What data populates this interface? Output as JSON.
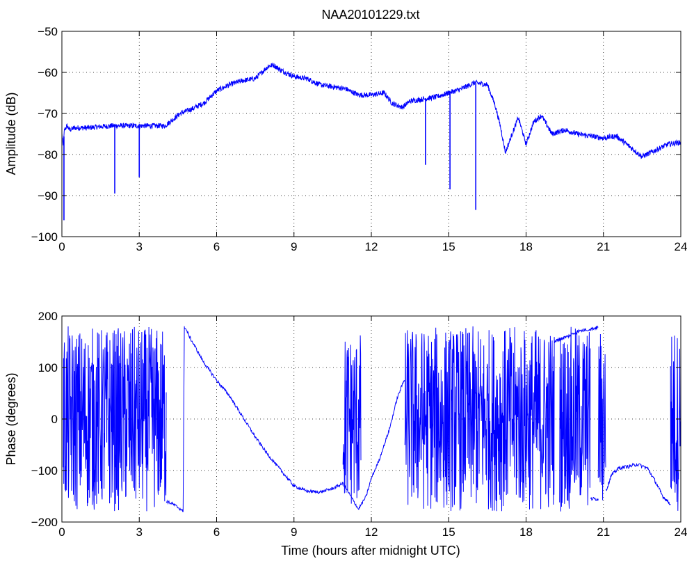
{
  "figure": {
    "title": "NAA20101229.txt",
    "line_color": "#0000ff",
    "background": "#ffffff",
    "grid_style": "dotted"
  },
  "chart_data": [
    {
      "type": "line",
      "title": "NAA20101229.txt",
      "xlabel": "",
      "ylabel": "Amplitude (dB)",
      "xlim": [
        0,
        24
      ],
      "ylim": [
        -100,
        -50
      ],
      "x_ticks": [
        0,
        3,
        6,
        9,
        12,
        15,
        18,
        21,
        24
      ],
      "y_ticks": [
        -50,
        -60,
        -70,
        -80,
        -90,
        -100
      ],
      "x_tick_labels": [
        "0",
        "3",
        "6",
        "9",
        "12",
        "15",
        "18",
        "21",
        "24"
      ],
      "y_tick_labels": [
        "−50",
        "−60",
        "−70",
        "−80",
        "−90",
        "−100"
      ],
      "grid": true,
      "series": [
        {
          "color": "#0000ff",
          "x": [
            0,
            0.05,
            0.1,
            0.2,
            0.3,
            0.5,
            1,
            1.5,
            2,
            2.5,
            3,
            3.5,
            4,
            4.3,
            4.6,
            5,
            5.5,
            6,
            6.5,
            7,
            7.5,
            8,
            8.2,
            8.5,
            9,
            9.5,
            10,
            10.5,
            11,
            11.5,
            12,
            12.5,
            12.8,
            13.2,
            13.5,
            14,
            14.5,
            15,
            15.5,
            16,
            16.5,
            16.8,
            17,
            17.2,
            17.4,
            17.7,
            18,
            18.3,
            18.6,
            19,
            19.5,
            20,
            20.5,
            21,
            21.5,
            22,
            22.5,
            23,
            23.5,
            24
          ],
          "y": [
            -75,
            -78,
            -74,
            -73,
            -74,
            -73.5,
            -73.5,
            -73.2,
            -73,
            -73,
            -73,
            -73,
            -73,
            -71.5,
            -70,
            -69,
            -67.5,
            -64.5,
            -63,
            -62,
            -61.5,
            -58.5,
            -58.2,
            -59.5,
            -61,
            -61.5,
            -63,
            -63.5,
            -64,
            -65.5,
            -65.5,
            -65,
            -67.5,
            -68.5,
            -67,
            -66.5,
            -66,
            -65,
            -64,
            -62.5,
            -63,
            -68,
            -73,
            -79.5,
            -76,
            -71,
            -77.5,
            -72,
            -70.5,
            -75,
            -74,
            -75,
            -75.5,
            -76,
            -75.5,
            -78,
            -80.5,
            -79,
            -77.5,
            -77
          ],
          "spikes": [
            {
              "x": 0.08,
              "min": -96
            },
            {
              "x": 2.05,
              "min": -89.5
            },
            {
              "x": 3.0,
              "min": -85.5
            },
            {
              "x": 14.1,
              "min": -82.5
            },
            {
              "x": 15.05,
              "min": -88.5
            },
            {
              "x": 16.05,
              "min": -93.5
            }
          ]
        }
      ]
    },
    {
      "type": "line",
      "title": "",
      "xlabel": "Time (hours after midnight UTC)",
      "ylabel": "Phase (degrees)",
      "xlim": [
        0,
        24
      ],
      "ylim": [
        -200,
        200
      ],
      "x_ticks": [
        0,
        3,
        6,
        9,
        12,
        15,
        18,
        21,
        24
      ],
      "y_ticks": [
        200,
        100,
        0,
        -100,
        -200
      ],
      "x_tick_labels": [
        "0",
        "3",
        "6",
        "9",
        "12",
        "15",
        "18",
        "21",
        "24"
      ],
      "y_tick_labels": [
        "200",
        "100",
        "0",
        "−100",
        "−200"
      ],
      "grid": true,
      "series": [
        {
          "color": "#0000ff",
          "x": [
            4.05,
            4.3,
            4.6,
            4.7,
            4.75,
            5,
            5.5,
            6,
            6.5,
            7,
            7.5,
            8,
            8.5,
            9,
            9.5,
            10,
            10.5,
            10.9,
            11.2,
            11.5,
            11.8,
            12,
            12.3,
            12.7,
            13,
            13.3
          ],
          "y": [
            -160,
            -165,
            -175,
            -180,
            180,
            155,
            110,
            75,
            45,
            5,
            -35,
            -70,
            -100,
            -130,
            -140,
            -142,
            -135,
            -125,
            -150,
            -175,
            -150,
            -115,
            -80,
            -20,
            40,
            80
          ],
          "noise_bands": [
            {
              "x0": 0.05,
              "x1": 4.05,
              "low": -180,
              "high": 180
            },
            {
              "x0": 10.9,
              "x1": 11.6,
              "low": -175,
              "high": 170
            },
            {
              "x0": 13.3,
              "x1": 19.1,
              "low": -180,
              "high": 180
            },
            {
              "x0": 19.3,
              "x1": 20.5,
              "low": -180,
              "high": 180
            },
            {
              "x0": 20.8,
              "x1": 21.1,
              "low": -180,
              "high": 180
            },
            {
              "x0": 23.6,
              "x1": 24.0,
              "low": -180,
              "high": 180
            }
          ],
          "segments": [
            {
              "x": [
                19.1,
                19.3,
                19.6,
                20.0,
                20.5,
                20.8
              ],
              "y": [
                150,
                155,
                160,
                170,
                175,
                178
              ]
            },
            {
              "x": [
                20.5,
                20.8
              ],
              "y": [
                -155,
                -155
              ]
            },
            {
              "x": [
                21.1,
                21.3,
                21.6,
                22.0,
                22.3,
                22.7,
                23.0,
                23.3,
                23.6
              ],
              "y": [
                -140,
                -110,
                -95,
                -92,
                -88,
                -95,
                -120,
                -150,
                -165
              ]
            }
          ]
        }
      ]
    }
  ]
}
